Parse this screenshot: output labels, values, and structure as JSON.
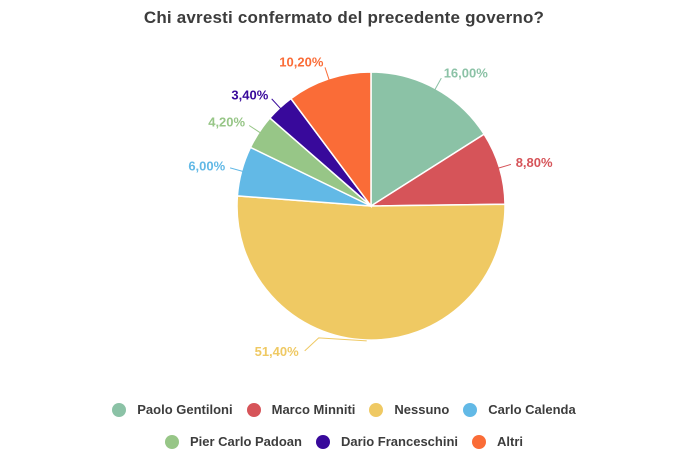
{
  "chart_data": {
    "type": "pie",
    "title": "Chi avresti confermato del precedente governo?",
    "categories": [
      "Paolo Gentiloni",
      "Marco Minniti",
      "Nessuno",
      "Carlo Calenda",
      "Pier Carlo Padoan",
      "Dario Franceschini",
      "Altri"
    ],
    "values": [
      16.0,
      8.8,
      51.4,
      6.0,
      4.2,
      3.4,
      10.2
    ],
    "percent_labels": [
      "16,00%",
      "8,80%",
      "51,40%",
      "6,00%",
      "4,20%",
      "3,40%",
      "10,20%"
    ],
    "colors": [
      "#8bc2a6",
      "#d65459",
      "#efc963",
      "#62b9e6",
      "#97c687",
      "#38099b",
      "#fa6c37"
    ],
    "start_angle_deg": 0,
    "direction": "clockwise",
    "slice_border_color": "#ffffff",
    "background_color": "#ffffff",
    "title_color": "#3c3c3c",
    "legend_text_color": "#3d3d3d",
    "legend_position": "bottom",
    "legend_rows": [
      4,
      3
    ]
  }
}
